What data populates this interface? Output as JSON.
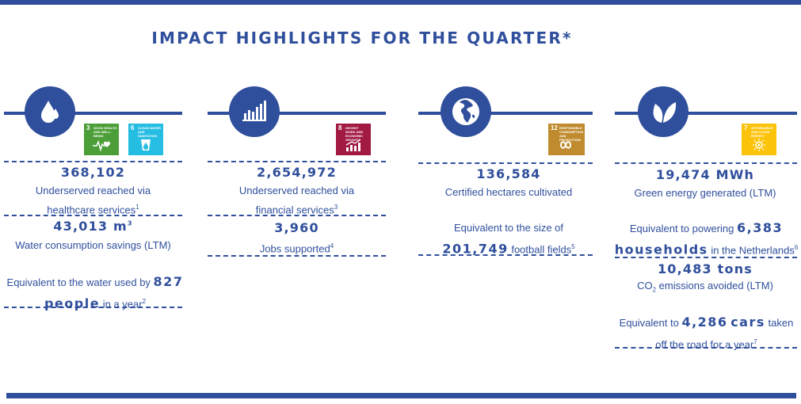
{
  "title": "IMPACT HIGHLIGHTS FOR THE QUARTER*",
  "colors": {
    "primary": "#2f4f9c",
    "sdg3": "#4c9f38",
    "sdg6": "#26bde2",
    "sdg8": "#a21942",
    "sdg12": "#bf8b2e",
    "sdg7": "#fcc30b"
  },
  "columns": [
    {
      "icon": "water-drop-icon",
      "sdgs": [
        {
          "num": "3",
          "label": "Good health and well-being",
          "icon": "heartbeat-icon"
        },
        {
          "num": "6",
          "label": "Clean water and sanitation",
          "icon": "water-glass-icon"
        }
      ],
      "m1_value": "368,102",
      "m1_label_a": "Underserved reached via",
      "m1_label_b": "healthcare services",
      "m1_sup": "1",
      "m2_value": "43,013 m",
      "m2_sup": "3",
      "m2_label": "Water consumption savings (LTM)",
      "eq_prefix": "Equivalent to the water used by",
      "eq_num": "827",
      "eq_word": "people",
      "eq_suffix": "in a year",
      "eq_sup": "2"
    },
    {
      "icon": "bar-chart-icon",
      "sdgs": [
        {
          "num": "8",
          "label": "Decent work and economic growth",
          "icon": "growth-chart-icon"
        }
      ],
      "m1_value": "2,654,972",
      "m1_label_a": "Underserved reached via",
      "m1_label_b": "financial services",
      "m1_sup": "3",
      "m2_value": "3,960",
      "m2_label": "Jobs supported",
      "m2_sup": "4"
    },
    {
      "icon": "globe-icon",
      "sdgs": [
        {
          "num": "12",
          "label": "Responsible consumption and production",
          "icon": "infinity-icon"
        }
      ],
      "m1_value": "136,584",
      "m1_label": "Certified hectares cultivated",
      "eq_prefix": "Equivalent to the size of",
      "eq_num": "201,749",
      "eq_suffix": "football fields",
      "eq_sup": "5"
    },
    {
      "icon": "leaves-icon",
      "sdgs": [
        {
          "num": "7",
          "label": "Affordable and clean energy",
          "icon": "sun-icon"
        }
      ],
      "m1_value": "19,474 MWh",
      "m1_label": "Green energy generated (LTM)",
      "eq1_prefix": "Equivalent to powering",
      "eq1_num": "6,383",
      "eq1_word": "households",
      "eq1_suffix": "in the Netherlands",
      "eq1_sup": "6",
      "m2_value": "10,483 tons",
      "m2_label_a": "CO",
      "m2_label_sub": "2",
      "m2_label_b": " emissions avoided (LTM)",
      "eq2_prefix": "Equivalent to",
      "eq2_num": "4,286",
      "eq2_word": "cars",
      "eq2_suffix_a": "taken",
      "eq2_suffix_b": "off the road for a year",
      "eq2_sup": "7"
    }
  ]
}
